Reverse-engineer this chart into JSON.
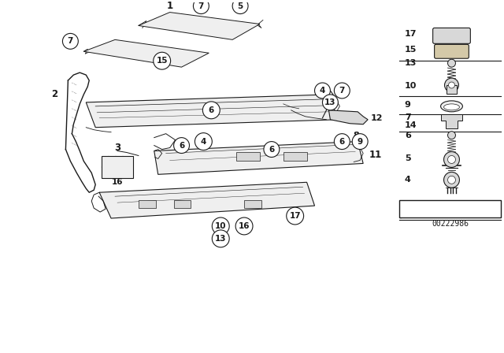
{
  "bg_color": "#ffffff",
  "part_number": "00222986",
  "line_color": "#1a1a1a",
  "gray_fill": "#d8d8d8",
  "light_fill": "#efefef"
}
